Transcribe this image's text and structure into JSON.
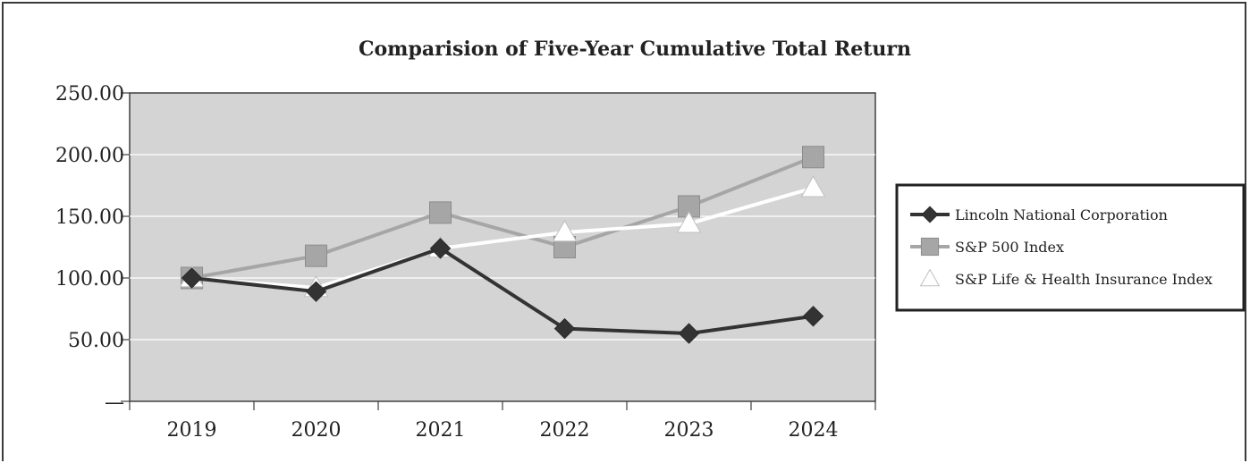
{
  "chart_data": {
    "type": "line",
    "title": "Comparision of Five-Year Cumulative Total Return",
    "xlabel": "",
    "ylabel": "",
    "categories": [
      "2019",
      "2020",
      "2021",
      "2022",
      "2023",
      "2024"
    ],
    "y_ticks": [
      "—",
      "50.00",
      "100.00",
      "150.00",
      "200.00",
      "250.00"
    ],
    "ylim": [
      0,
      250
    ],
    "grid": true,
    "legend_position": "right",
    "plot_background": "#d4d4d4",
    "series": [
      {
        "name": "Lincoln National Corporation",
        "color": "#333333",
        "marker": "diamond",
        "values": [
          100,
          89,
          124,
          59,
          55,
          69
        ]
      },
      {
        "name": "S&P 500 Index",
        "color": "#a6a6a6",
        "marker": "square",
        "values": [
          100,
          118,
          153,
          125,
          158,
          198
        ]
      },
      {
        "name": "S&P Life & Health Insurance Index",
        "color": "#ffffff",
        "marker": "triangle",
        "values": [
          100,
          92,
          124,
          137,
          144,
          173
        ]
      }
    ]
  }
}
